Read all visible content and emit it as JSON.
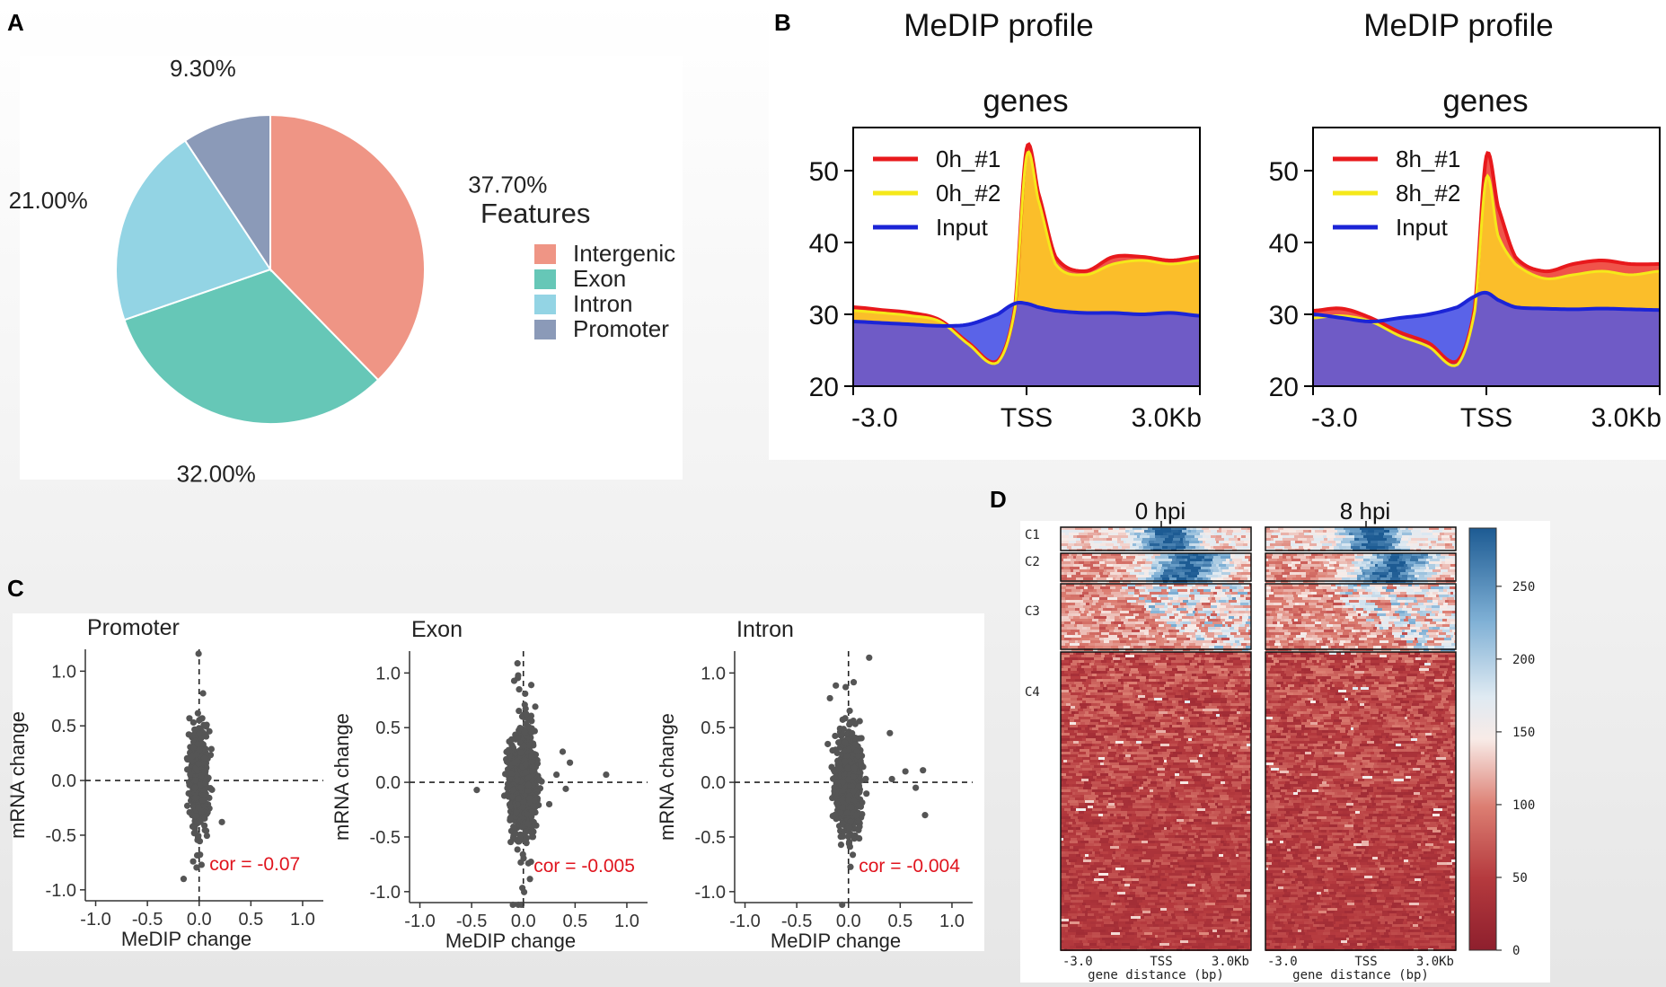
{
  "panels": {
    "a": "A",
    "b": "B",
    "c": "C",
    "d": "D"
  },
  "chart_data": [
    {
      "type": "pie",
      "panel": "A",
      "legend_title": "Features",
      "categories": [
        "Intergenic",
        "Exon",
        "Intron",
        "Promoter"
      ],
      "values": [
        37.7,
        32.0,
        21.0,
        9.3
      ],
      "labels": [
        "37.70%",
        "32.00%",
        "21.00%",
        "9.30%"
      ],
      "colors": [
        "#EF9585",
        "#66C7B7",
        "#93D4E4",
        "#8B9AB8"
      ]
    },
    {
      "type": "area",
      "panel": "B",
      "title": "MeDIP profile",
      "subtitle": "genes",
      "xticks": [
        "-3.0",
        "TSS",
        "3.0Kb"
      ],
      "yticks": [
        20,
        30,
        40,
        50
      ],
      "ylim": [
        20,
        56
      ],
      "x": [
        -3.0,
        -2.5,
        -2.0,
        -1.5,
        -1.0,
        -0.5,
        -0.2,
        0.0,
        0.2,
        0.5,
        1.0,
        1.5,
        2.0,
        2.5,
        3.0
      ],
      "series": [
        {
          "name": "0h_#1",
          "color": "#E8191C",
          "values": [
            31,
            30.6,
            30.2,
            29.2,
            26,
            23.5,
            31,
            53,
            47,
            38,
            36,
            38,
            38,
            37.5,
            38
          ]
        },
        {
          "name": "0h_#2",
          "color": "#F5E81A",
          "values": [
            30.5,
            30.2,
            29.8,
            29,
            25.8,
            23.3,
            30.8,
            52,
            46,
            37,
            35.5,
            37,
            37.5,
            37,
            37.5
          ]
        },
        {
          "name": "Input",
          "color": "#1B24D6",
          "values": [
            29,
            28.8,
            28.6,
            28.4,
            28.6,
            30,
            31.5,
            31.5,
            31,
            30.5,
            30.2,
            30.2,
            30,
            30.2,
            29.8
          ]
        }
      ]
    },
    {
      "type": "area",
      "panel": "B",
      "title": "MeDIP profile",
      "subtitle": "genes",
      "xticks": [
        "-3.0",
        "TSS",
        "3.0Kb"
      ],
      "yticks": [
        20,
        30,
        40,
        50
      ],
      "ylim": [
        20,
        56
      ],
      "x": [
        -3.0,
        -2.5,
        -2.0,
        -1.5,
        -1.0,
        -0.5,
        -0.2,
        0.0,
        0.2,
        0.5,
        1.0,
        1.5,
        2.0,
        2.5,
        3.0
      ],
      "series": [
        {
          "name": "8h_#1",
          "color": "#E8191C",
          "values": [
            30.5,
            30.8,
            29.5,
            27.5,
            26,
            23.5,
            31,
            52,
            45,
            38,
            36,
            37,
            37.5,
            37,
            37
          ]
        },
        {
          "name": "8h_#2",
          "color": "#F5E81A",
          "values": [
            29.5,
            29.8,
            29,
            27,
            25.5,
            23,
            30.5,
            49,
            41,
            37,
            35,
            35.5,
            36,
            35.5,
            36
          ]
        },
        {
          "name": "Input",
          "color": "#1B24D6",
          "values": [
            30,
            29.5,
            29,
            29.5,
            30,
            31,
            32.5,
            33,
            32,
            31,
            30.8,
            30.7,
            30.8,
            30.7,
            30.6
          ]
        }
      ]
    },
    {
      "type": "scatter",
      "panel": "C",
      "title": "Promoter",
      "xlabel": "MeDIP change",
      "ylabel": "mRNA change",
      "xticks": [
        "-1.0",
        "-0.5",
        "0.0",
        "0.5",
        "1.0"
      ],
      "yticks": [
        "1.0",
        "0.5",
        "0.0",
        "-0.5",
        "-1.0"
      ],
      "xlim": [
        -1.1,
        1.2
      ],
      "ylim": [
        -1.1,
        1.2
      ],
      "annotation": "cor = -0.07"
    },
    {
      "type": "scatter",
      "panel": "C",
      "title": "Exon",
      "xlabel": "MeDIP change",
      "ylabel": "mRNA change",
      "xticks": [
        "-1.0",
        "-0.5",
        "0.0",
        "0.5",
        "1.0"
      ],
      "yticks": [
        "1.0",
        "0.5",
        "0.0",
        "-0.5",
        "-1.0"
      ],
      "xlim": [
        -1.1,
        1.2
      ],
      "ylim": [
        -1.1,
        1.2
      ],
      "annotation": "cor = -0.005"
    },
    {
      "type": "scatter",
      "panel": "C",
      "title": "Intron",
      "xlabel": "MeDIP change",
      "ylabel": "mRNA change",
      "xticks": [
        "-1.0",
        "-0.5",
        "0.0",
        "0.5",
        "1.0"
      ],
      "yticks": [
        "1.0",
        "0.5",
        "0.0",
        "-0.5",
        "-1.0"
      ],
      "xlim": [
        -1.1,
        1.2
      ],
      "ylim": [
        -1.1,
        1.2
      ],
      "annotation": "cor = -0.004"
    },
    {
      "type": "heatmap",
      "panel": "D",
      "columns": [
        "0 hpi",
        "8 hpi"
      ],
      "clusters": [
        "C1",
        "C2",
        "C3",
        "C4"
      ],
      "xticks": [
        "-3.0",
        "TSS",
        "3.0Kb"
      ],
      "xlabel": "gene distance (bp)",
      "colorbar_ticks": [
        250,
        200,
        150,
        100,
        50,
        0
      ],
      "colorbar_range": [
        0,
        290
      ]
    }
  ]
}
